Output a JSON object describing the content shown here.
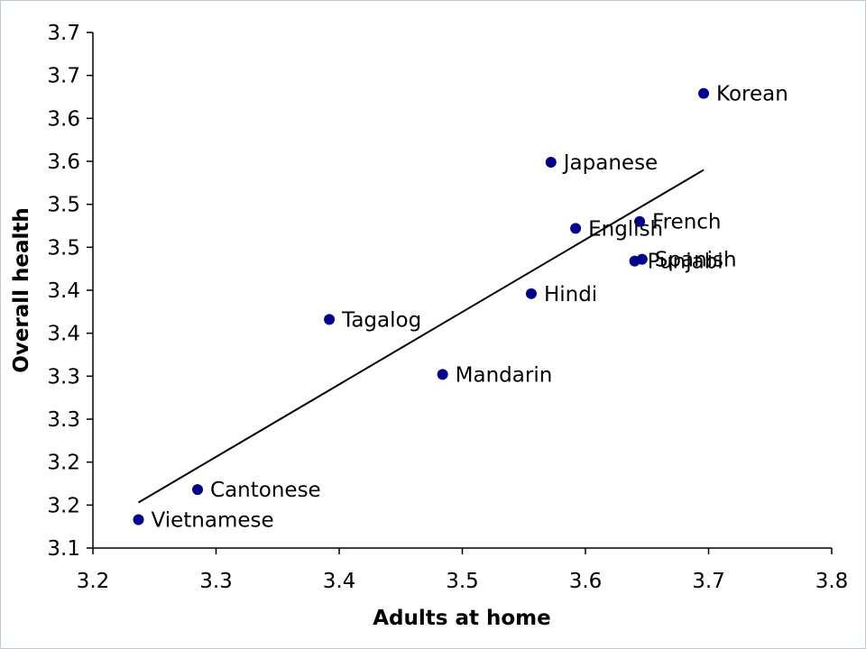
{
  "chart_data": {
    "type": "scatter",
    "xlabel": "Adults at home",
    "ylabel": "Overall health",
    "xlim": [
      3.2,
      3.8
    ],
    "ylim": [
      3.1,
      3.7
    ],
    "x_ticks": [
      3.2,
      3.3,
      3.4,
      3.5,
      3.6,
      3.7,
      3.8
    ],
    "x_tick_labels": [
      "3.2",
      "3.3",
      "3.4",
      "3.5",
      "3.6",
      "3.7",
      "3.8"
    ],
    "y_ticks": [
      3.1,
      3.15,
      3.2,
      3.25,
      3.3,
      3.35,
      3.4,
      3.45,
      3.5,
      3.55,
      3.6,
      3.65,
      3.7
    ],
    "y_tick_labels": [
      "3.1",
      "3.2",
      "3.2",
      "3.3",
      "3.3",
      "3.4",
      "3.4",
      "3.5",
      "3.5",
      "3.6",
      "3.6",
      "3.7",
      "3.7"
    ],
    "grid": false,
    "marker_color": "#00008b",
    "points": [
      {
        "label": "Vietnamese",
        "x": 3.237,
        "y": 3.133
      },
      {
        "label": "Cantonese",
        "x": 3.285,
        "y": 3.168
      },
      {
        "label": "Mandarin",
        "x": 3.484,
        "y": 3.302
      },
      {
        "label": "Tagalog",
        "x": 3.392,
        "y": 3.366
      },
      {
        "label": "Hindi",
        "x": 3.556,
        "y": 3.396
      },
      {
        "label": "Punjabi",
        "x": 3.64,
        "y": 3.434
      },
      {
        "label": "Spanish",
        "x": 3.646,
        "y": 3.436
      },
      {
        "label": "English",
        "x": 3.592,
        "y": 3.472
      },
      {
        "label": "French",
        "x": 3.644,
        "y": 3.48
      },
      {
        "label": "Japanese",
        "x": 3.572,
        "y": 3.549
      },
      {
        "label": "Korean",
        "x": 3.696,
        "y": 3.629
      }
    ],
    "trendline": {
      "x": [
        3.237,
        3.696
      ],
      "y": [
        3.153,
        3.54
      ],
      "color": "#000000"
    }
  }
}
